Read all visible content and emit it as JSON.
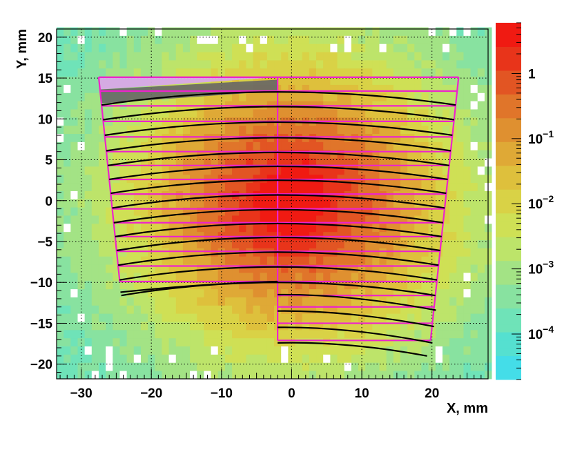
{
  "chart_data": {
    "type": "heatmap",
    "title": "",
    "xlabel": "X, mm",
    "ylabel": "Y, mm",
    "xlim": [
      -33.5,
      28
    ],
    "ylim": [
      -21.8,
      21
    ],
    "x_ticks": [
      "−30",
      "−20",
      "−10",
      "0",
      "10",
      "20"
    ],
    "x_tick_values": [
      -30,
      -20,
      -10,
      0,
      10,
      20
    ],
    "y_ticks": [
      "−20",
      "−15",
      "−10",
      "−5",
      "0",
      "5",
      "10",
      "15",
      "20"
    ],
    "y_tick_values": [
      -20,
      -15,
      -10,
      -5,
      0,
      5,
      10,
      15,
      20
    ],
    "grid": true,
    "colorbar": {
      "scale": "log",
      "range": [
        2e-05,
        6
      ],
      "tick_labels": [
        {
          "base": "1",
          "exp": "",
          "value": 1
        },
        {
          "base": "10",
          "exp": "−1",
          "value": 0.1
        },
        {
          "base": "10",
          "exp": "−2",
          "value": 0.01
        },
        {
          "base": "10",
          "exp": "−3",
          "value": 0.001
        },
        {
          "base": "10",
          "exp": "−4",
          "value": 0.0001
        }
      ]
    },
    "intensity_peak": {
      "x": 0,
      "y": 0
    },
    "overlay_colors": {
      "boxes": "#ee22cc",
      "curves": "#000000"
    },
    "left_panel_rows": [
      {
        "y0": 13.4,
        "y1": 15.1
      },
      {
        "y0": 11.6,
        "y1": 13.4
      },
      {
        "y0": 9.7,
        "y1": 11.6
      },
      {
        "y0": 7.8,
        "y1": 9.7
      },
      {
        "y0": 6.0,
        "y1": 7.8
      },
      {
        "y0": 4.3,
        "y1": 6.0
      },
      {
        "y0": 2.6,
        "y1": 4.3
      },
      {
        "y0": 0.8,
        "y1": 2.6
      },
      {
        "y0": -1.0,
        "y1": 0.8
      },
      {
        "y0": -2.7,
        "y1": 0.8
      },
      {
        "y0": -4.4,
        "y1": -2.7
      },
      {
        "y0": -6.2,
        "y1": -4.4
      },
      {
        "y0": -8.0,
        "y1": -6.2
      },
      {
        "y0": -9.9,
        "y1": -8.0
      }
    ],
    "right_panel_rows_extra": [
      {
        "y0": -13.0,
        "y1": -11.6
      },
      {
        "y0": -15.0,
        "y1": -13.0
      },
      {
        "y0": -17.1,
        "y1": -15.0
      }
    ]
  }
}
